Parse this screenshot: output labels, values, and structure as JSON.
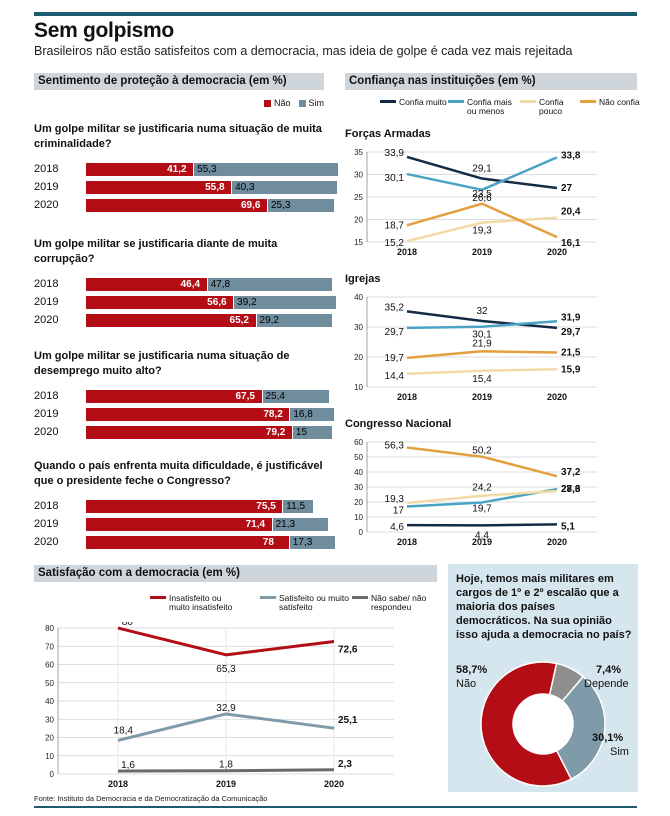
{
  "header": {
    "title": "Sem golpismo",
    "subtitle": "Brasileiros não estão satisfeitos com a democracia, mas ideia de golpe é cada vez mais rejeitada"
  },
  "colors": {
    "nao": "#b30e16",
    "sim": "#6f8d9d",
    "header_bar": "#1f5a73",
    "box_bg": "#d6e6ee"
  },
  "protection": {
    "title": "Sentimento de proteção à democracia (em %)",
    "legend_nao": "Não",
    "legend_sim": "Sim",
    "questions": [
      {
        "text": "Um golpe militar se justificaria numa situação de muita criminalidade?",
        "rows": [
          {
            "year": "2018",
            "nao": 41.2,
            "sim": 55.3,
            "nao_label": "41,2",
            "sim_label": "55,3"
          },
          {
            "year": "2019",
            "nao": 55.8,
            "sim": 40.3,
            "nao_label": "55,8",
            "sim_label": "40,3"
          },
          {
            "year": "2020",
            "nao": 69.6,
            "sim": 25.3,
            "nao_label": "69,6",
            "sim_label": "25,3"
          }
        ]
      },
      {
        "text": "Um golpe militar se justificaria diante de muita corrupção?",
        "rows": [
          {
            "year": "2018",
            "nao": 46.4,
            "sim": 47.8,
            "nao_label": "46,4",
            "sim_label": "47,8"
          },
          {
            "year": "2019",
            "nao": 56.6,
            "sim": 39.2,
            "nao_label": "56,6",
            "sim_label": "39,2"
          },
          {
            "year": "2020",
            "nao": 65.2,
            "sim": 29.2,
            "nao_label": "65,2",
            "sim_label": "29,2"
          }
        ]
      },
      {
        "text": "Um golpe militar se justificaria numa situação de desemprego muito alto?",
        "rows": [
          {
            "year": "2018",
            "nao": 67.5,
            "sim": 25.4,
            "nao_label": "67,5",
            "sim_label": "25,4"
          },
          {
            "year": "2019",
            "nao": 78.2,
            "sim": 16.8,
            "nao_label": "78,2",
            "sim_label": "16,8"
          },
          {
            "year": "2020",
            "nao": 79.2,
            "sim": 15,
            "nao_label": "79,2",
            "sim_label": "15"
          }
        ]
      },
      {
        "text": "Quando o país enfrenta muita dificuldade, é justificável que o presidente feche o Congresso?",
        "rows": [
          {
            "year": "2018",
            "nao": 75.5,
            "sim": 11.5,
            "nao_label": "75,5",
            "sim_label": "11,5"
          },
          {
            "year": "2019",
            "nao": 71.4,
            "sim": 21.3,
            "nao_label": "71,4",
            "sim_label": "21,3"
          },
          {
            "year": "2020",
            "nao": 78,
            "sim": 17.3,
            "nao_label": "78",
            "sim_label": "17,3"
          }
        ]
      }
    ]
  },
  "confidence": {
    "title": "Confiança nas instituições (em %)",
    "legend": [
      {
        "name": "Confia muito",
        "color": "#142b45"
      },
      {
        "name": "Confia mais ou menos",
        "color": "#4aa3c4"
      },
      {
        "name": "Confia pouco",
        "color": "#f1d9a8"
      },
      {
        "name": "Não confia",
        "color": "#e3a03e"
      }
    ]
  },
  "chart_data": [
    {
      "type": "bar",
      "title": "Um golpe militar se justificaria numa situação de muita criminalidade?",
      "categories": [
        "2018",
        "2019",
        "2020"
      ],
      "series": [
        {
          "name": "Não",
          "values": [
            41.2,
            55.8,
            69.6
          ]
        },
        {
          "name": "Sim",
          "values": [
            55.3,
            40.3,
            25.3
          ]
        }
      ]
    },
    {
      "type": "bar",
      "title": "Um golpe militar se justificaria diante de muita corrupção?",
      "categories": [
        "2018",
        "2019",
        "2020"
      ],
      "series": [
        {
          "name": "Não",
          "values": [
            46.4,
            56.6,
            65.2
          ]
        },
        {
          "name": "Sim",
          "values": [
            47.8,
            39.2,
            29.2
          ]
        }
      ]
    },
    {
      "type": "bar",
      "title": "Um golpe militar se justificaria numa situação de desemprego muito alto?",
      "categories": [
        "2018",
        "2019",
        "2020"
      ],
      "series": [
        {
          "name": "Não",
          "values": [
            67.5,
            78.2,
            79.2
          ]
        },
        {
          "name": "Sim",
          "values": [
            25.4,
            16.8,
            15
          ]
        }
      ]
    },
    {
      "type": "bar",
      "title": "Quando o país enfrenta muita dificuldade, é justificável que o presidente feche o Congresso?",
      "categories": [
        "2018",
        "2019",
        "2020"
      ],
      "series": [
        {
          "name": "Não",
          "values": [
            75.5,
            71.4,
            78
          ]
        },
        {
          "name": "Sim",
          "values": [
            11.5,
            21.3,
            17.3
          ]
        }
      ]
    },
    {
      "type": "line",
      "title": "Forças Armadas",
      "x": [
        "2018",
        "2019",
        "2020"
      ],
      "ylim": [
        15,
        35
      ],
      "yticks": [
        15,
        20,
        25,
        30,
        35
      ],
      "series": [
        {
          "name": "Confia muito",
          "color": "#142b45",
          "values": [
            33.9,
            29.1,
            27
          ],
          "labels": [
            "33,9",
            "29,1",
            "27"
          ]
        },
        {
          "name": "Confia mais ou menos",
          "color": "#4aa3c4",
          "values": [
            30.1,
            26.6,
            33.8
          ],
          "labels": [
            "30,1",
            "26,6",
            "33,8"
          ]
        },
        {
          "name": "Confia pouco",
          "color": "#f1d9a8",
          "values": [
            15.2,
            19.3,
            20.4
          ],
          "labels": [
            "15,2",
            "19,3",
            "20,4"
          ]
        },
        {
          "name": "Não confia",
          "color": "#e3a03e",
          "values": [
            18.7,
            23.5,
            16.1
          ],
          "labels": [
            "18,7",
            "23,5",
            "16,1"
          ]
        }
      ]
    },
    {
      "type": "line",
      "title": "Igrejas",
      "x": [
        "2018",
        "2019",
        "2020"
      ],
      "ylim": [
        10,
        40
      ],
      "yticks": [
        10,
        20,
        30,
        40
      ],
      "series": [
        {
          "name": "Confia muito",
          "color": "#142b45",
          "values": [
            35.2,
            32,
            29.7
          ],
          "labels": [
            "35,2",
            "32",
            "29,7"
          ]
        },
        {
          "name": "Confia mais ou menos",
          "color": "#4aa3c4",
          "values": [
            29.7,
            30.1,
            31.9
          ],
          "labels": [
            "29,7",
            "30,1",
            "31,9"
          ]
        },
        {
          "name": "Confia pouco",
          "color": "#f1d9a8",
          "values": [
            14.4,
            15.4,
            15.9
          ],
          "labels": [
            "14,4",
            "15,4",
            "15,9"
          ]
        },
        {
          "name": "Não confia",
          "color": "#e3a03e",
          "values": [
            19.7,
            21.9,
            21.5
          ],
          "labels": [
            "19,7",
            "21,9",
            "21,5"
          ]
        }
      ]
    },
    {
      "type": "line",
      "title": "Congresso Nacional",
      "x": [
        "2018",
        "2019",
        "2020"
      ],
      "ylim": [
        0,
        60
      ],
      "yticks": [
        0,
        10,
        20,
        30,
        40,
        50,
        60
      ],
      "series": [
        {
          "name": "Confia muito",
          "color": "#142b45",
          "values": [
            4.6,
            4.4,
            5.1
          ],
          "labels": [
            "4,6",
            "4,4",
            "5,1"
          ]
        },
        {
          "name": "Confia mais ou menos",
          "color": "#4aa3c4",
          "values": [
            17,
            19.7,
            28.6
          ],
          "labels": [
            "17",
            "19,7",
            "28,6"
          ]
        },
        {
          "name": "Confia pouco",
          "color": "#f1d9a8",
          "values": [
            19.3,
            24.2,
            27.3
          ],
          "labels": [
            "19,3",
            "24,2",
            "27,3"
          ]
        },
        {
          "name": "Não confia",
          "color": "#e3a03e",
          "values": [
            56.3,
            50.2,
            37.2
          ],
          "labels": [
            "56,3",
            "50,2",
            "37,2"
          ]
        }
      ]
    },
    {
      "type": "line",
      "title": "Satisfação com a democracia (em %)",
      "x": [
        "2018",
        "2019",
        "2020"
      ],
      "ylim": [
        0,
        80
      ],
      "yticks": [
        0,
        10,
        20,
        30,
        40,
        50,
        60,
        70,
        80
      ],
      "series": [
        {
          "name": "Insatisfeito ou muito insatisfeito",
          "color": "#b30e16",
          "values": [
            80,
            65.3,
            72.6
          ],
          "labels": [
            "80",
            "65,3",
            "72,6"
          ]
        },
        {
          "name": "Satisfeito ou muito satisfeito",
          "color": "#7f9aa8",
          "values": [
            18.4,
            32.9,
            25.1
          ],
          "labels": [
            "18,4",
            "32,9",
            "25,1"
          ]
        },
        {
          "name": "Não sabe/ não respondeu",
          "color": "#6a6a6a",
          "values": [
            1.6,
            1.8,
            2.3
          ],
          "labels": [
            "1,6",
            "1,8",
            "2,3"
          ]
        }
      ]
    },
    {
      "type": "pie",
      "title": "Hoje, temos mais militares em cargos de 1º e 2º escalão que a maioria dos países democráticos. Na sua opinião isso ajuda a democracia no país?",
      "slices": [
        {
          "name": "Não",
          "value": 58.7,
          "label": "58,7%",
          "color": "#b30e16"
        },
        {
          "name": "Depende",
          "value": 7.4,
          "label": "7,4%",
          "color": "#8e8e8e"
        },
        {
          "name": "Sim",
          "value": 30.1,
          "label": "30,1%",
          "color": "#7f9aa8"
        }
      ]
    }
  ],
  "satisfaction": {
    "title": "Satisfação com a democracia (em %)",
    "legend": [
      {
        "name": "Insatisfeito ou muito insatisfeito",
        "color": "#b30e16"
      },
      {
        "name": "Satisfeito ou muito satisfeito",
        "color": "#7f9aa8"
      },
      {
        "name": "Não sabe/ não respondeu",
        "color": "#6a6a6a"
      }
    ]
  },
  "source": "Fonte: Instituto da Democracia e da Democratização da Comunicação"
}
